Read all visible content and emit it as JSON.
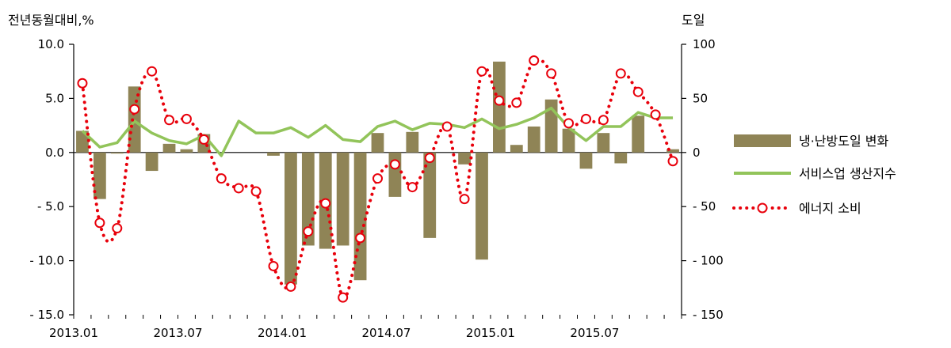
{
  "chart_data": {
    "type": "bar+line",
    "left_axis": {
      "unit_label": "전년동월대비,%",
      "ylim": [
        -15,
        10
      ],
      "ticks": [
        10,
        5,
        0,
        -5,
        -10,
        -15
      ],
      "tick_labels": [
        "10.0",
        "5.0",
        "0.0",
        "- 5.0",
        "- 10.0",
        "- 15.0"
      ]
    },
    "right_axis": {
      "unit_label": "도일",
      "ylim": [
        -150,
        100
      ],
      "ticks": [
        100,
        50,
        0,
        -50,
        -100,
        -150
      ],
      "tick_labels": [
        "100",
        "50",
        "0",
        "- 50",
        "- 100",
        "- 150"
      ]
    },
    "x_tick_labels": [
      {
        "index": 0,
        "label": "2013.01"
      },
      {
        "index": 6,
        "label": "2013.07"
      },
      {
        "index": 12,
        "label": "2014.01"
      },
      {
        "index": 18,
        "label": "2014.07"
      },
      {
        "index": 24,
        "label": "2015.01"
      },
      {
        "index": 30,
        "label": "2015.07"
      }
    ],
    "n_periods": 35,
    "series": [
      {
        "name": "냉·난방도일 변화",
        "type": "bar",
        "axis": "right",
        "color": "#8f8456",
        "values": [
          20,
          -43,
          -1,
          61,
          -17,
          8,
          3,
          17,
          0,
          0,
          0,
          -3,
          -122,
          -86,
          -89,
          -86,
          -118,
          18,
          -41,
          19,
          -79,
          0,
          -11,
          -99,
          84,
          7,
          24,
          49,
          22,
          -15,
          18,
          -10,
          34,
          0,
          3
        ]
      },
      {
        "name": "서비스업 생산지수",
        "type": "line",
        "axis": "left",
        "color": "#92c45a",
        "values": [
          2.0,
          0.5,
          0.9,
          2.9,
          1.8,
          1.1,
          0.8,
          1.6,
          -0.3,
          2.9,
          1.8,
          1.8,
          2.3,
          1.4,
          2.5,
          1.2,
          1.0,
          2.4,
          2.9,
          2.1,
          2.7,
          2.6,
          2.3,
          3.1,
          2.2,
          2.6,
          3.2,
          4.1,
          2.3,
          1.1,
          2.4,
          2.4,
          3.7,
          3.2,
          3.2
        ]
      },
      {
        "name": "에너지 소비",
        "type": "line-dotted-markers",
        "axis": "right",
        "color": "#e8000b",
        "values": [
          64,
          -65,
          -70,
          40,
          75,
          30,
          31,
          12,
          -24,
          -33,
          -36,
          -105,
          -124,
          -73,
          -47,
          -134,
          -79,
          -24,
          -11,
          -32,
          -5,
          24,
          -43,
          75,
          48,
          46,
          85,
          73,
          27,
          31,
          30,
          73,
          56,
          35,
          -8
        ]
      }
    ],
    "legend_position": "right"
  }
}
